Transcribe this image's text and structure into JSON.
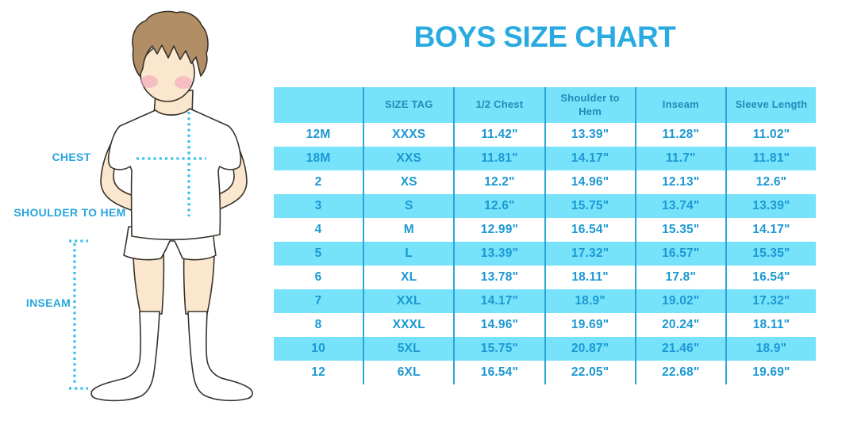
{
  "page": {
    "title": "BOYS SIZE CHART"
  },
  "figure": {
    "description": "Cartoon boy in white t-shirt, shorts and knee socks with dotted measurement guides",
    "labels": {
      "chest": "CHEST",
      "shoulder_to_hem": "SHOULDER TO HEM",
      "inseam": "INSEAM"
    }
  },
  "chart_data": {
    "type": "table",
    "title": "BOYS SIZE CHART",
    "columns": [
      "",
      "SIZE TAG",
      "1/2 Chest",
      "Shoulder to Hem",
      "Inseam",
      "Sleeve Length"
    ],
    "rows": [
      [
        "12M",
        "XXXS",
        "11.42\"",
        "13.39\"",
        "11.28\"",
        "11.02\""
      ],
      [
        "18M",
        "XXS",
        "11.81\"",
        "14.17\"",
        "11.7\"",
        "11.81\""
      ],
      [
        "2",
        "XS",
        "12.2\"",
        "14.96\"",
        "12.13\"",
        "12.6\""
      ],
      [
        "3",
        "S",
        "12.6\"",
        "15.75\"",
        "13.74\"",
        "13.39\""
      ],
      [
        "4",
        "M",
        "12.99\"",
        "16.54\"",
        "15.35\"",
        "14.17\""
      ],
      [
        "5",
        "L",
        "13.39\"",
        "17.32\"",
        "16.57\"",
        "15.35\""
      ],
      [
        "6",
        "XL",
        "13.78\"",
        "18.11\"",
        "17.8\"",
        "16.54\""
      ],
      [
        "7",
        "XXL",
        "14.17\"",
        "18.9\"",
        "19.02\"",
        "17.32\""
      ],
      [
        "8",
        "XXXL",
        "14.96\"",
        "19.69\"",
        "20.24\"",
        "18.11\""
      ],
      [
        "10",
        "5XL",
        "15.75\"",
        "20.87\"",
        "21.46\"",
        "18.9\""
      ],
      [
        "12",
        "6XL",
        "16.54\"",
        "22.05\"",
        "22.68\"",
        "19.69\""
      ]
    ]
  },
  "colors": {
    "title_text": "#29ABE2",
    "stripe_cyan": "#76E3FB",
    "column_divider": "#2BA5D6",
    "header_text": "#2589B8",
    "cell_text": "#1B98D3",
    "measure_line": "#33BFEF",
    "figure_label_text": "#29A4DE",
    "hair": "#B28E66",
    "skin": "#FAE7CD",
    "blush": "#F2A9BC"
  }
}
